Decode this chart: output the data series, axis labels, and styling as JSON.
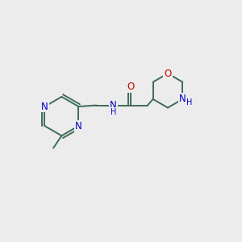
{
  "bg_color": "#ececec",
  "bond_color": "#3d6b5a",
  "N_color": "#0000cc",
  "O_color": "#cc0000",
  "bond_width": 1.4,
  "font_size": 8.5,
  "figsize": [
    3.0,
    3.0
  ],
  "dpi": 100,
  "xlim": [
    0,
    10
  ],
  "ylim": [
    0,
    10
  ]
}
